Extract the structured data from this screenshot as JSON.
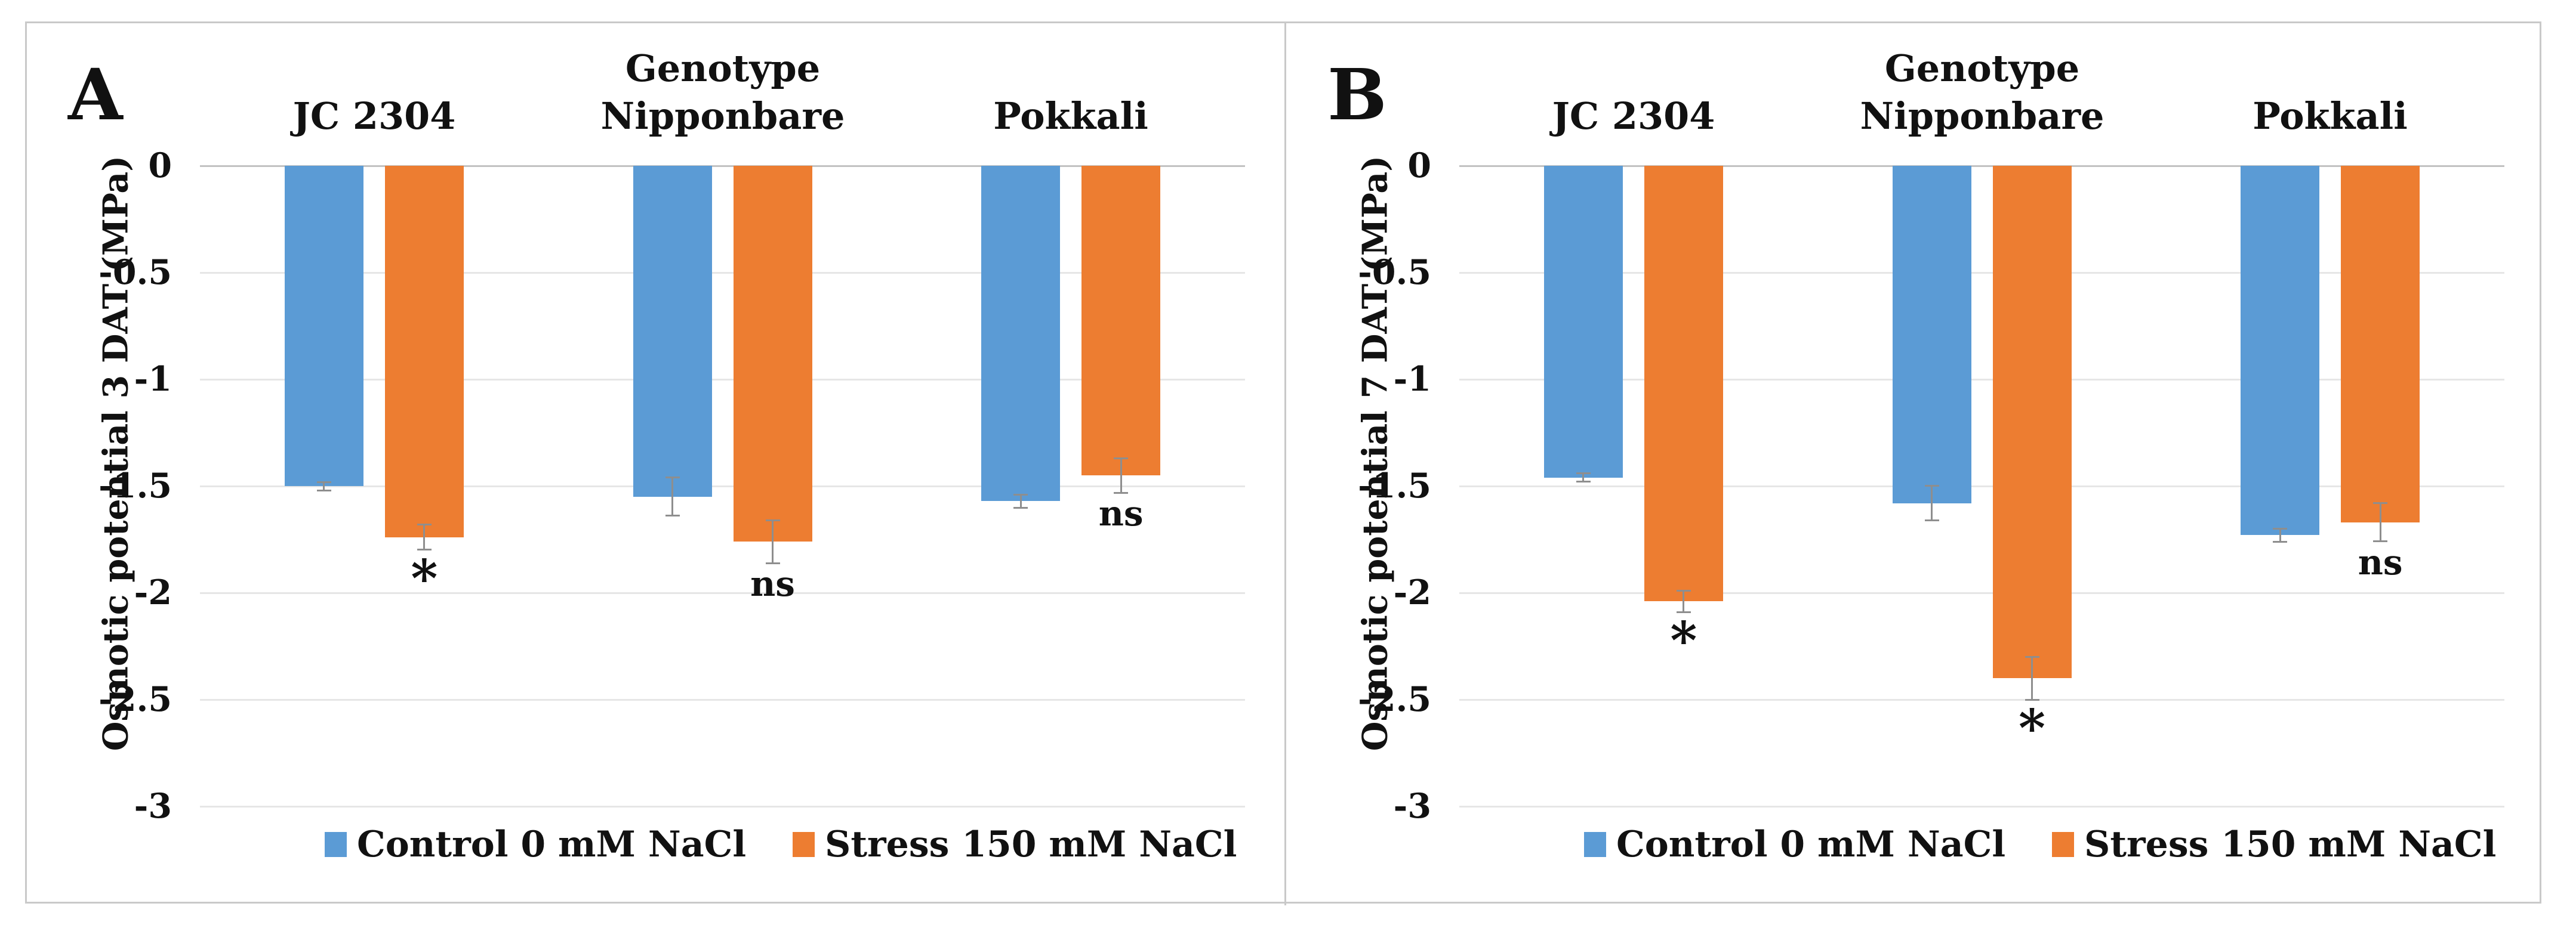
{
  "figure": {
    "colors": {
      "control": "#5B9BD5",
      "stress": "#ED7D31",
      "grid": "#e6e6e6",
      "zero_line": "#c2c2c2",
      "error_bar": "#8e8e8e",
      "border": "#c9c9c9",
      "text": "#111111"
    }
  },
  "chart_data": [
    {
      "type": "bar",
      "panel_label": "A",
      "title": "Genotype",
      "ylabel": "Osmotic potential 3 DAT (MPa)",
      "categories": [
        "JC 2304",
        "Nipponbare",
        "Pokkali"
      ],
      "ylim": [
        0,
        -3
      ],
      "yticks": [
        0,
        -0.5,
        -1,
        -1.5,
        -2,
        -2.5,
        -3
      ],
      "grid": true,
      "legend_position": "bottom",
      "series": [
        {
          "name": "Control 0 mM NaCl",
          "color_key": "control",
          "values": [
            -1.5,
            -1.55,
            -1.57
          ],
          "errors": [
            0.02,
            0.09,
            0.03
          ]
        },
        {
          "name": "Stress 150 mM NaCl",
          "color_key": "stress",
          "values": [
            -1.74,
            -1.76,
            -1.45
          ],
          "errors": [
            0.06,
            0.1,
            0.08
          ]
        }
      ],
      "significance": [
        "*",
        "ns",
        "ns"
      ]
    },
    {
      "type": "bar",
      "panel_label": "B",
      "title": "Genotype",
      "ylabel": "Osmotic potential 7 DAT (MPa)",
      "categories": [
        "JC 2304",
        "Nipponbare",
        "Pokkali"
      ],
      "ylim": [
        0,
        -3
      ],
      "yticks": [
        0,
        -0.5,
        -1,
        -1.5,
        -2,
        -2.5,
        -3
      ],
      "grid": true,
      "legend_position": "bottom",
      "series": [
        {
          "name": "Control 0 mM NaCl",
          "color_key": "control",
          "values": [
            -1.46,
            -1.58,
            -1.73
          ],
          "errors": [
            0.02,
            0.08,
            0.03
          ]
        },
        {
          "name": "Stress 150 mM NaCl",
          "color_key": "stress",
          "values": [
            -2.04,
            -2.4,
            -1.67
          ],
          "errors": [
            0.05,
            0.1,
            0.09
          ]
        }
      ],
      "significance": [
        "*",
        "*",
        "ns"
      ]
    }
  ]
}
